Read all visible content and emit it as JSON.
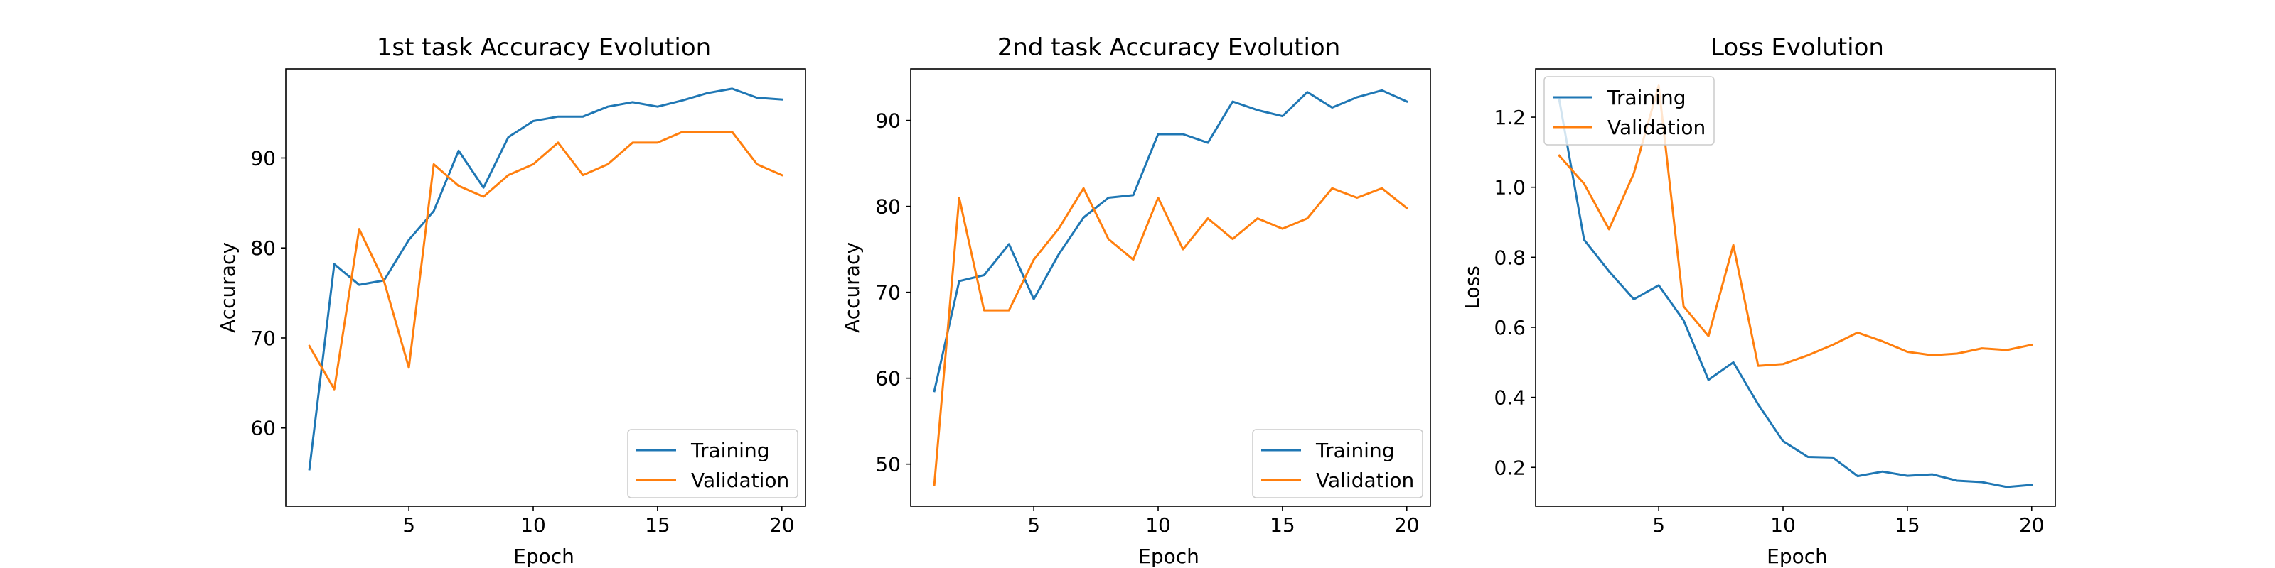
{
  "chart_data": [
    {
      "type": "line",
      "title": "1st task Accuracy Evolution",
      "xlabel": "Epoch",
      "ylabel": "Accuracy",
      "xlim": [
        0.05,
        20.95
      ],
      "ylim": [
        51.3,
        99.9
      ],
      "xticks": [
        5,
        10,
        15,
        20
      ],
      "yticks": [
        60,
        70,
        80,
        90
      ],
      "grid": false,
      "legend": "lower right",
      "x": [
        1,
        2,
        3,
        4,
        5,
        6,
        7,
        8,
        9,
        10,
        11,
        12,
        13,
        14,
        15,
        16,
        17,
        18,
        19,
        20
      ],
      "series": [
        {
          "name": "Training",
          "color": "#1f77b4",
          "values": [
            55.4,
            78.2,
            75.9,
            76.4,
            80.9,
            84.1,
            90.8,
            86.7,
            92.3,
            94.1,
            94.6,
            94.6,
            95.7,
            96.2,
            95.7,
            96.4,
            97.2,
            97.7,
            96.7,
            96.5
          ]
        },
        {
          "name": "Validation",
          "color": "#ff7f0e",
          "values": [
            69.1,
            64.3,
            82.1,
            76.3,
            66.7,
            89.3,
            86.9,
            85.7,
            88.1,
            89.3,
            91.7,
            88.1,
            89.3,
            91.7,
            91.7,
            92.9,
            92.9,
            92.9,
            89.3,
            88.1
          ]
        }
      ]
    },
    {
      "type": "line",
      "title": "2nd task Accuracy Evolution",
      "xlabel": "Epoch",
      "ylabel": "Accuracy",
      "xlim": [
        0.05,
        20.95
      ],
      "ylim": [
        45.1,
        96.0
      ],
      "xticks": [
        5,
        10,
        15,
        20
      ],
      "yticks": [
        50,
        60,
        70,
        80,
        90
      ],
      "grid": false,
      "legend": "lower right",
      "x": [
        1,
        2,
        3,
        4,
        5,
        6,
        7,
        8,
        9,
        10,
        11,
        12,
        13,
        14,
        15,
        16,
        17,
        18,
        19,
        20
      ],
      "series": [
        {
          "name": "Training",
          "color": "#1f77b4",
          "values": [
            58.5,
            71.3,
            72.0,
            75.6,
            69.2,
            74.4,
            78.7,
            81.0,
            81.3,
            88.4,
            88.4,
            87.4,
            92.2,
            91.2,
            90.5,
            93.3,
            91.5,
            92.7,
            93.5,
            92.2
          ]
        },
        {
          "name": "Validation",
          "color": "#ff7f0e",
          "values": [
            47.6,
            81.0,
            67.9,
            67.9,
            73.8,
            77.4,
            82.1,
            76.2,
            73.8,
            81.0,
            75.0,
            78.6,
            76.2,
            78.6,
            77.4,
            78.6,
            82.1,
            81.0,
            82.1,
            79.8
          ]
        }
      ]
    },
    {
      "type": "line",
      "title": "Loss Evolution",
      "xlabel": "Epoch",
      "ylabel": "Loss",
      "xlim": [
        0.05,
        20.95
      ],
      "ylim": [
        0.089,
        1.338
      ],
      "xticks": [
        5,
        10,
        15,
        20
      ],
      "yticks": [
        0.2,
        0.4,
        0.6,
        0.8,
        1.0,
        1.2
      ],
      "ytick_labels": [
        "0.2",
        "0.4",
        "0.6",
        "0.8",
        "1.0",
        "1.2"
      ],
      "grid": false,
      "legend": "upper left",
      "x": [
        1,
        2,
        3,
        4,
        5,
        6,
        7,
        8,
        9,
        10,
        11,
        12,
        13,
        14,
        15,
        16,
        17,
        18,
        19,
        20
      ],
      "series": [
        {
          "name": "Training",
          "color": "#1f77b4",
          "values": [
            1.25,
            0.85,
            0.76,
            0.68,
            0.72,
            0.62,
            0.45,
            0.5,
            0.38,
            0.275,
            0.23,
            0.228,
            0.175,
            0.188,
            0.176,
            0.18,
            0.162,
            0.158,
            0.144,
            0.15
          ]
        },
        {
          "name": "Validation",
          "color": "#ff7f0e",
          "values": [
            1.09,
            1.01,
            0.88,
            1.04,
            1.29,
            0.66,
            0.575,
            0.835,
            0.49,
            0.495,
            0.52,
            0.55,
            0.585,
            0.56,
            0.53,
            0.52,
            0.525,
            0.54,
            0.535,
            0.55
          ]
        }
      ]
    }
  ]
}
